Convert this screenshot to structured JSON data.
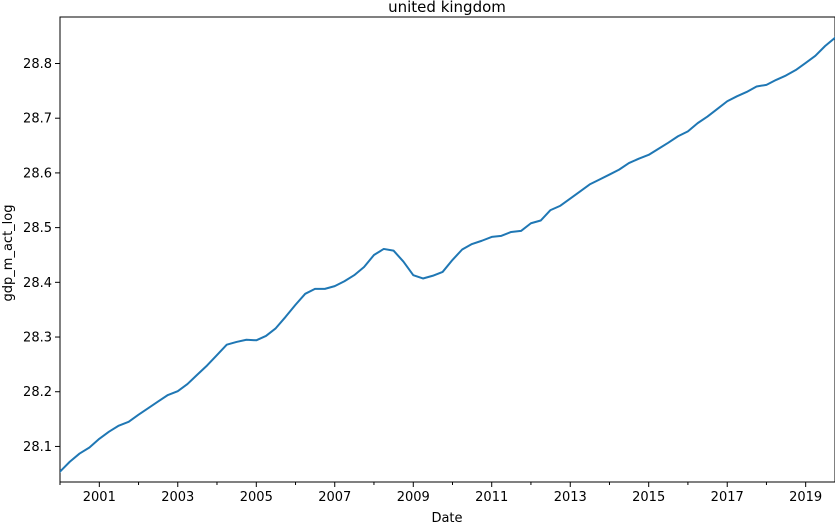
{
  "chart_data": {
    "type": "line",
    "title": "united kingdom",
    "xlabel": "Date",
    "ylabel": "gdp_m_act_log",
    "xlim": [
      "2000-01-01",
      "2019-10-01"
    ],
    "ylim": [
      28.035,
      28.885
    ],
    "xticks": [
      {
        "date": "2001-01-01",
        "label": "2001"
      },
      {
        "date": "2003-01-01",
        "label": "2003"
      },
      {
        "date": "2005-01-01",
        "label": "2005"
      },
      {
        "date": "2007-01-01",
        "label": "2007"
      },
      {
        "date": "2009-01-01",
        "label": "2009"
      },
      {
        "date": "2011-01-01",
        "label": "2011"
      },
      {
        "date": "2013-01-01",
        "label": "2013"
      },
      {
        "date": "2015-01-01",
        "label": "2015"
      },
      {
        "date": "2017-01-01",
        "label": "2017"
      },
      {
        "date": "2019-01-01",
        "label": "2019"
      }
    ],
    "yticks": [
      28.1,
      28.2,
      28.3,
      28.4,
      28.5,
      28.6,
      28.7,
      28.8
    ],
    "grid": false,
    "colors": {
      "line": "#1f77b4",
      "axes": "#000000"
    },
    "series": [
      {
        "x": [
          "2000-01-01",
          "2000-04-01",
          "2000-07-01",
          "2000-10-01",
          "2001-01-01",
          "2001-04-01",
          "2001-07-01",
          "2001-10-01",
          "2002-01-01",
          "2002-04-01",
          "2002-07-01",
          "2002-10-01",
          "2003-01-01",
          "2003-04-01",
          "2003-07-01",
          "2003-10-01",
          "2004-01-01",
          "2004-04-01",
          "2004-07-01",
          "2004-10-01",
          "2005-01-01",
          "2005-04-01",
          "2005-07-01",
          "2005-10-01",
          "2006-01-01",
          "2006-04-01",
          "2006-07-01",
          "2006-10-01",
          "2007-01-01",
          "2007-04-01",
          "2007-07-01",
          "2007-10-01",
          "2008-01-01",
          "2008-04-01",
          "2008-07-01",
          "2008-10-01",
          "2009-01-01",
          "2009-04-01",
          "2009-07-01",
          "2009-10-01",
          "2010-01-01",
          "2010-04-01",
          "2010-07-01",
          "2010-10-01",
          "2011-01-01",
          "2011-04-01",
          "2011-07-01",
          "2011-10-01",
          "2012-01-01",
          "2012-04-01",
          "2012-07-01",
          "2012-10-01",
          "2013-01-01",
          "2013-04-01",
          "2013-07-01",
          "2013-10-01",
          "2014-01-01",
          "2014-04-01",
          "2014-07-01",
          "2014-10-01",
          "2015-01-01",
          "2015-04-01",
          "2015-07-01",
          "2015-10-01",
          "2016-01-01",
          "2016-04-01",
          "2016-07-01",
          "2016-10-01",
          "2017-01-01",
          "2017-04-01",
          "2017-07-01",
          "2017-10-01",
          "2018-01-01",
          "2018-04-01",
          "2018-07-01",
          "2018-10-01",
          "2019-01-01",
          "2019-04-01",
          "2019-07-01",
          "2019-10-01"
        ],
        "values": [
          28.054,
          28.072,
          28.087,
          28.098,
          28.114,
          28.127,
          28.138,
          28.145,
          28.158,
          28.17,
          28.182,
          28.194,
          28.201,
          28.214,
          28.231,
          28.248,
          28.267,
          28.286,
          28.291,
          28.295,
          28.294,
          28.302,
          28.316,
          28.337,
          28.359,
          28.379,
          28.388,
          28.388,
          28.393,
          28.402,
          28.413,
          28.428,
          28.45,
          28.461,
          28.458,
          28.438,
          28.413,
          28.407,
          28.412,
          28.419,
          28.441,
          28.46,
          28.47,
          28.476,
          28.483,
          28.485,
          28.492,
          28.494,
          28.508,
          28.513,
          28.532,
          28.54,
          28.553,
          28.566,
          28.579,
          28.588,
          28.597,
          28.606,
          28.618,
          28.626,
          28.633,
          28.644,
          28.655,
          28.667,
          28.676,
          28.691,
          28.703,
          28.717,
          28.731,
          28.74,
          28.748,
          28.758,
          28.761,
          28.77,
          28.778,
          28.788,
          28.801,
          28.814,
          28.832,
          28.847
        ]
      }
    ]
  }
}
